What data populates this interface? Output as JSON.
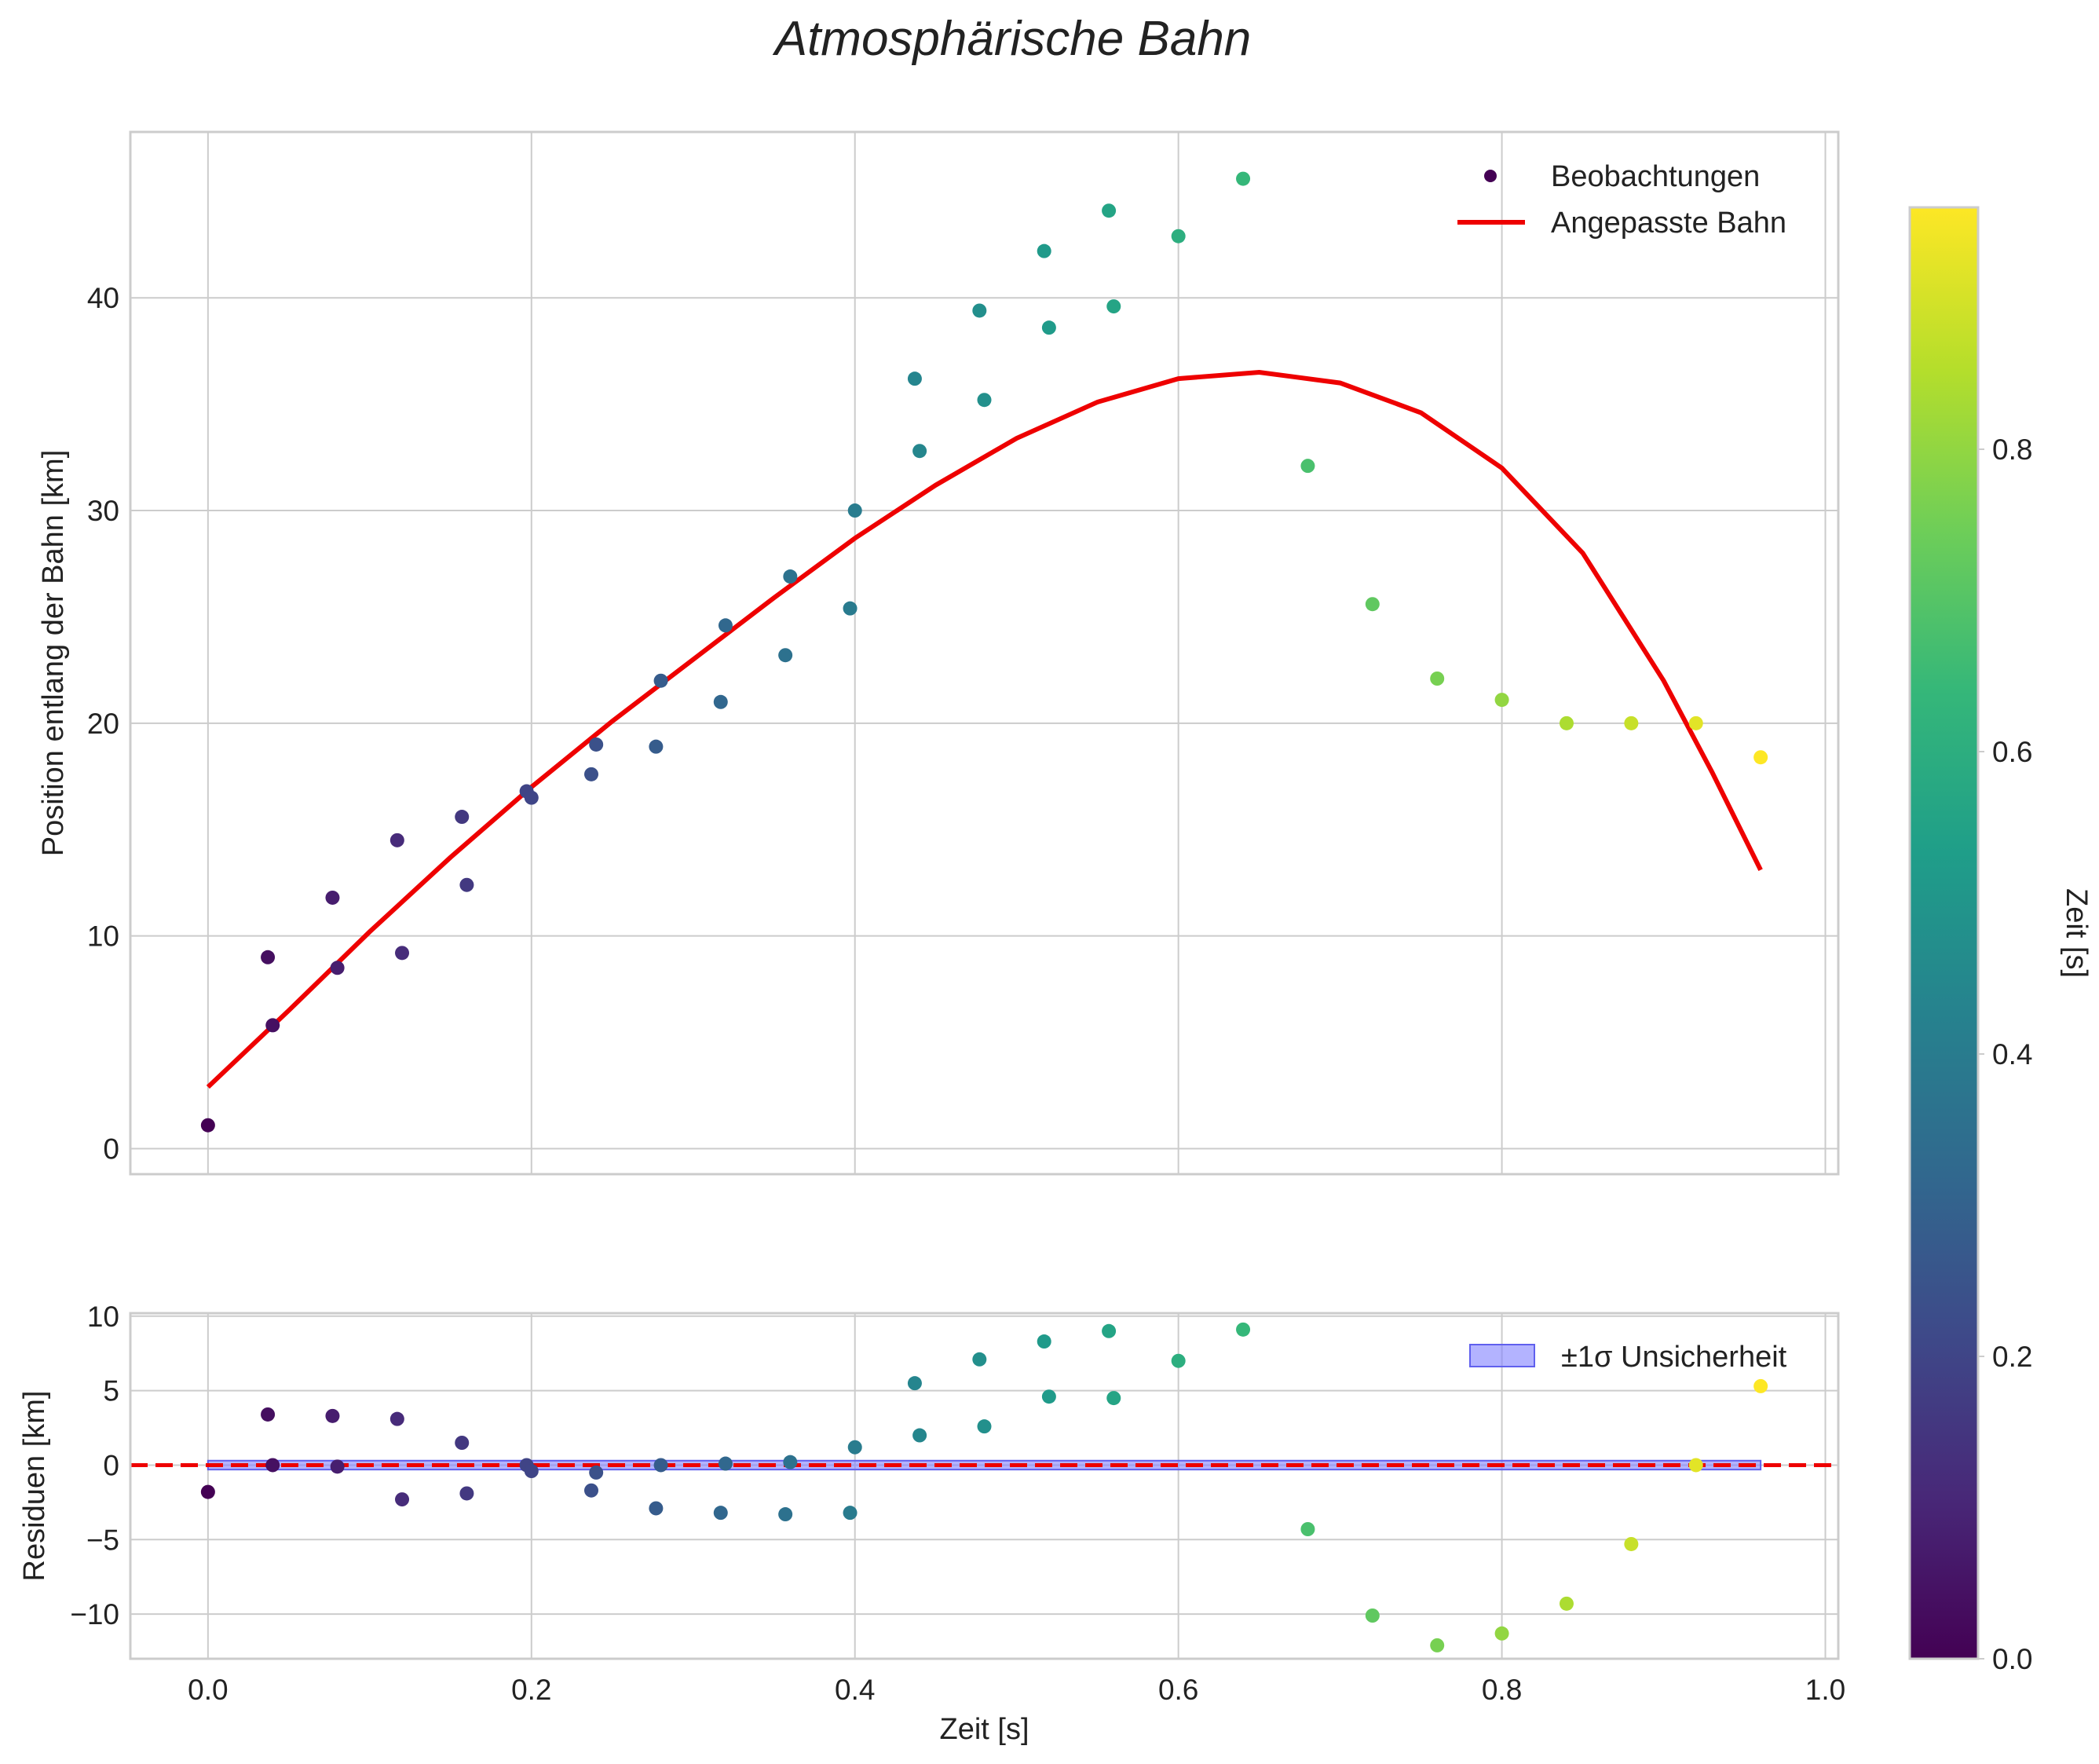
{
  "chart_data": [
    {
      "type": "scatter",
      "panel": "main",
      "title": "Atmosphärische Bahn",
      "xlabel": "",
      "ylabel": "Position entlang der Bahn [km]",
      "xlim": [
        -0.048,
        1.008
      ],
      "ylim": [
        -1.2,
        47.8
      ],
      "xticks": [
        0.0,
        0.2,
        0.4,
        0.6,
        0.8,
        1.0
      ],
      "yticks": [
        0,
        10,
        20,
        30,
        40
      ],
      "ytick_labels": [
        "0",
        "10",
        "20",
        "30",
        "40"
      ],
      "grid": true,
      "legend": {
        "position": "top-right",
        "entries": [
          {
            "label": "Beobachtungen",
            "kind": "marker",
            "color": "#440154"
          },
          {
            "label": "Angepasste Bahn",
            "kind": "line",
            "color": "#ee0000"
          }
        ]
      },
      "series": [
        {
          "name": "Beobachtungen",
          "kind": "scatter",
          "x": [
            0.0,
            0.037,
            0.04,
            0.077,
            0.08,
            0.117,
            0.12,
            0.157,
            0.16,
            0.197,
            0.2,
            0.237,
            0.24,
            0.277,
            0.28,
            0.317,
            0.32,
            0.357,
            0.36,
            0.397,
            0.4,
            0.437,
            0.44,
            0.477,
            0.48,
            0.517,
            0.52,
            0.557,
            0.56,
            0.6,
            0.64,
            0.68,
            0.72,
            0.76,
            0.8,
            0.84,
            0.88,
            0.92,
            0.96
          ],
          "y": [
            1.1,
            9.0,
            5.8,
            11.8,
            8.5,
            14.5,
            9.2,
            15.6,
            12.4,
            16.8,
            16.5,
            17.6,
            19.0,
            18.9,
            22.0,
            21.0,
            24.6,
            23.2,
            26.9,
            25.4,
            30.0,
            36.2,
            32.8,
            39.4,
            35.2,
            42.2,
            38.6,
            44.1,
            39.6,
            42.9,
            45.6,
            32.1,
            25.6,
            22.1,
            21.1,
            20.0,
            20.0,
            20.0,
            18.4
          ]
        },
        {
          "name": "Angepasste Bahn",
          "kind": "line",
          "color": "#ee0000",
          "x": [
            0.0,
            0.05,
            0.1,
            0.15,
            0.2,
            0.25,
            0.3,
            0.35,
            0.4,
            0.45,
            0.5,
            0.55,
            0.6,
            0.65,
            0.7,
            0.75,
            0.8,
            0.85,
            0.9,
            0.93,
            0.96
          ],
          "y": [
            2.9,
            6.5,
            10.2,
            13.7,
            17.0,
            20.1,
            23.0,
            25.9,
            28.7,
            31.2,
            33.4,
            35.1,
            36.2,
            36.5,
            36.0,
            34.6,
            32.0,
            28.0,
            22.0,
            17.7,
            13.1
          ]
        }
      ]
    },
    {
      "type": "scatter",
      "panel": "residuals",
      "title": "",
      "xlabel": "Zeit [s]",
      "ylabel": "Residuen [km]",
      "xlim": [
        -0.048,
        1.008
      ],
      "ylim": [
        -13.0,
        10.2
      ],
      "xticks": [
        0.0,
        0.2,
        0.4,
        0.6,
        0.8,
        1.0
      ],
      "xtick_labels": [
        "0.0",
        "0.2",
        "0.4",
        "0.6",
        "0.8",
        "1.0"
      ],
      "yticks": [
        10,
        5,
        0,
        -5,
        -10
      ],
      "ytick_labels": [
        "10",
        "5",
        "0",
        "−5",
        "−10"
      ],
      "grid": true,
      "legend": {
        "position": "top-right",
        "entries": [
          {
            "label": "±1σ Unsicherheit",
            "kind": "patch",
            "color": "#8080ff"
          }
        ]
      },
      "series": [
        {
          "name": "Residuen",
          "kind": "scatter",
          "x": [
            0.0,
            0.037,
            0.04,
            0.077,
            0.08,
            0.117,
            0.12,
            0.157,
            0.16,
            0.197,
            0.2,
            0.237,
            0.24,
            0.277,
            0.28,
            0.317,
            0.32,
            0.357,
            0.36,
            0.397,
            0.4,
            0.437,
            0.44,
            0.477,
            0.48,
            0.517,
            0.52,
            0.557,
            0.56,
            0.6,
            0.64,
            0.68,
            0.72,
            0.76,
            0.8,
            0.84,
            0.88,
            0.92,
            0.96
          ],
          "y": [
            -1.8,
            3.4,
            0.0,
            3.3,
            -0.1,
            3.1,
            -2.3,
            1.5,
            -1.9,
            0.0,
            -0.4,
            -1.7,
            -0.5,
            -2.9,
            0.0,
            -3.2,
            0.1,
            -3.3,
            0.2,
            -3.2,
            1.2,
            5.5,
            2.0,
            7.1,
            2.6,
            8.3,
            4.6,
            9.0,
            4.5,
            7.0,
            9.1,
            -4.3,
            -10.1,
            -12.1,
            -11.3,
            -9.3,
            -5.3,
            0.0,
            5.3
          ]
        },
        {
          "name": "Nulllinie",
          "kind": "dashed-line",
          "color": "#ee0000",
          "y": 0
        },
        {
          "name": "±1σ Unsicherheit",
          "kind": "band",
          "color": "#8080ff",
          "x": [
            0.0,
            0.96
          ],
          "lower": -0.3,
          "upper": 0.3
        }
      ]
    }
  ],
  "colorbar": {
    "label": "Zeit [s]",
    "min": 0.0,
    "max": 0.96,
    "ticks": [
      0.0,
      0.2,
      0.4,
      0.6,
      0.8
    ],
    "tick_labels": [
      "0.0",
      "0.2",
      "0.4",
      "0.6",
      "0.8"
    ],
    "colormap": "viridis",
    "stops": [
      "#440154",
      "#482878",
      "#3e4989",
      "#31688e",
      "#26828e",
      "#1f9e89",
      "#35b779",
      "#6ece58",
      "#b5de2b",
      "#fde725"
    ]
  }
}
